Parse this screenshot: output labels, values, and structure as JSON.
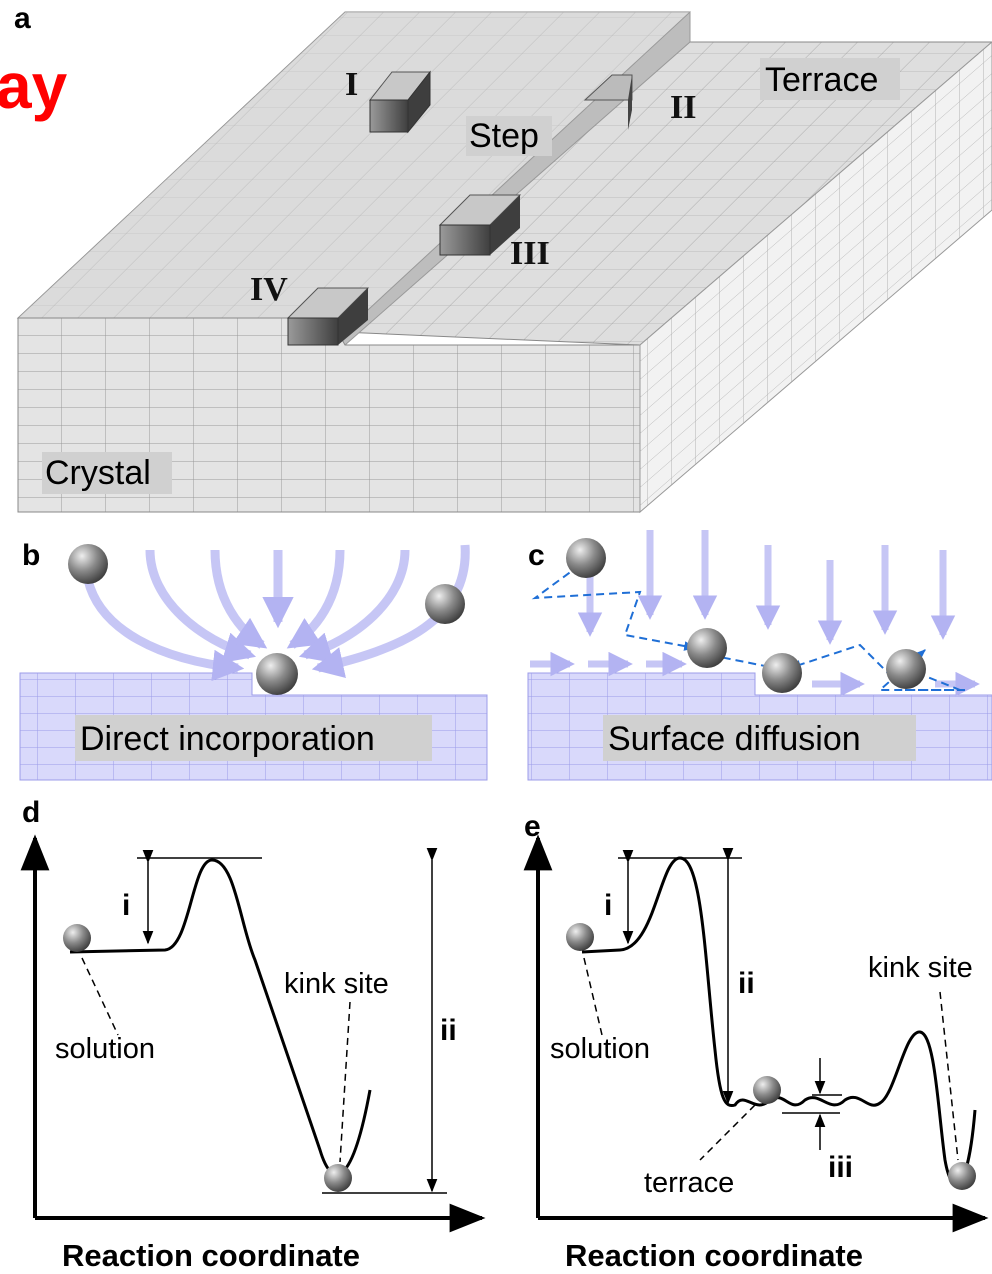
{
  "panels": {
    "a": {
      "label": "a",
      "overlay_text": "ay",
      "terrace": "Terrace",
      "step": "Step",
      "crystal": "Crystal",
      "sites": [
        "I",
        "II",
        "III",
        "IV"
      ]
    },
    "b": {
      "label": "b",
      "caption": "Direct incorporation"
    },
    "c": {
      "label": "c",
      "caption": "Surface diffusion"
    },
    "d": {
      "label": "d",
      "barriers": [
        "i",
        "ii"
      ],
      "kink_label": "kink site",
      "start_label": "solution",
      "x_axis": "Reaction coordinate"
    },
    "e": {
      "label": "e",
      "barriers": [
        "i",
        "ii",
        "iii"
      ],
      "terrace_label": "terrace",
      "kink_label": "kink site",
      "start_label": "solution",
      "x_axis": "Reaction coordinate"
    }
  }
}
